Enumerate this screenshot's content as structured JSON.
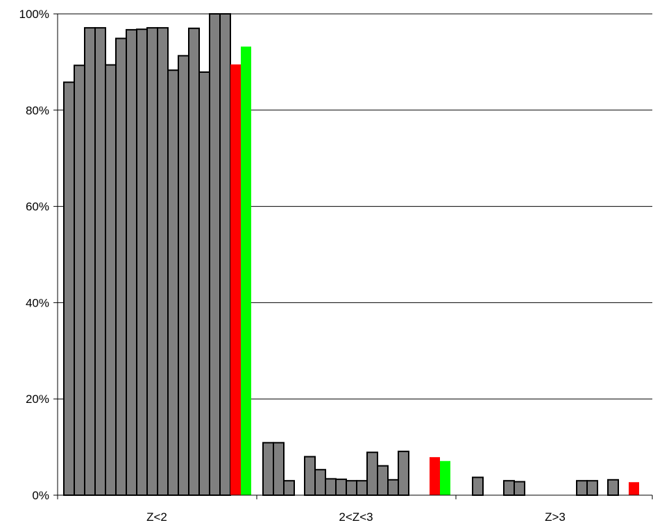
{
  "chart_data": {
    "type": "bar",
    "title": "",
    "xlabel": "",
    "ylabel": "",
    "ylim": [
      0,
      100
    ],
    "y_unit": "%",
    "grid": "horizontal",
    "y_ticks": [
      "0%",
      "20%",
      "40%",
      "60%",
      "80%",
      "100%"
    ],
    "y_tick_values": [
      0,
      20,
      40,
      60,
      80,
      100
    ],
    "categories": [
      "Z<2",
      "2<Z<3",
      "Z>3"
    ],
    "colors": {
      "gray": "#808080",
      "red": "#ff0000",
      "green": "#00ff00",
      "outline": "#000000",
      "grid": "#000000"
    },
    "groups": [
      {
        "category": "Z<2",
        "gray_values": [
          85.8,
          89.3,
          97.1,
          97.1,
          89.4,
          94.9,
          96.7,
          96.8,
          97.1,
          97.1,
          88.3,
          91.3,
          97.0,
          87.9,
          100.0,
          100.0
        ],
        "red_value": 89.5,
        "green_value": 93.2
      },
      {
        "category": "2<Z<3",
        "gray_values": [
          10.9,
          10.9,
          3.0,
          null,
          8.0,
          5.3,
          3.4,
          3.3,
          3.0,
          3.0,
          8.9,
          6.1,
          3.2,
          9.1,
          null,
          null
        ],
        "red_value": 7.9,
        "green_value": 7.1
      },
      {
        "category": "Z>3",
        "gray_values": [
          null,
          3.7,
          null,
          null,
          3.0,
          2.8,
          null,
          null,
          null,
          null,
          null,
          3.0,
          3.0,
          null,
          3.2,
          null
        ],
        "red_value": 2.7,
        "green_value": null
      }
    ]
  }
}
